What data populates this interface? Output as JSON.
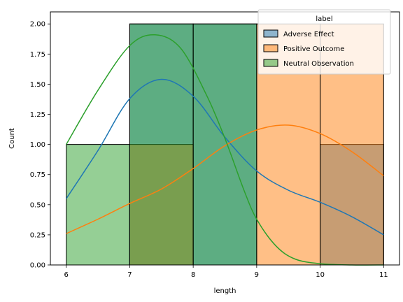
{
  "chart_data": {
    "type": "histogram",
    "title": "",
    "xlabel": "length",
    "ylabel": "Count",
    "xlim": [
      5.75,
      11.25
    ],
    "ylim": [
      0,
      2.1
    ],
    "xticks": [
      "6",
      "7",
      "8",
      "9",
      "10",
      "11"
    ],
    "yticks": [
      "0.00",
      "0.25",
      "0.50",
      "0.75",
      "1.00",
      "1.25",
      "1.50",
      "1.75",
      "2.00"
    ],
    "legend": {
      "title": "label",
      "position": "top-right"
    },
    "bin_edges": [
      6,
      7,
      8,
      9,
      10,
      11
    ],
    "series": [
      {
        "name": "Adverse Effect",
        "color": "#1f77b4",
        "counts": [
          0,
          2,
          2,
          0,
          1
        ],
        "kde": [
          [
            6.0,
            0.55
          ],
          [
            6.5,
            0.95
          ],
          [
            7.0,
            1.38
          ],
          [
            7.5,
            1.54
          ],
          [
            8.0,
            1.4
          ],
          [
            8.5,
            1.06
          ],
          [
            9.0,
            0.78
          ],
          [
            9.5,
            0.62
          ],
          [
            10.0,
            0.52
          ],
          [
            10.5,
            0.4
          ],
          [
            11.0,
            0.25
          ]
        ]
      },
      {
        "name": "Positive Outcome",
        "color": "#ff7f0e",
        "counts": [
          0,
          1,
          0,
          2,
          2
        ],
        "kde": [
          [
            6.0,
            0.26
          ],
          [
            6.5,
            0.38
          ],
          [
            7.0,
            0.51
          ],
          [
            7.5,
            0.63
          ],
          [
            8.0,
            0.8
          ],
          [
            8.5,
            0.99
          ],
          [
            9.0,
            1.12
          ],
          [
            9.5,
            1.16
          ],
          [
            10.0,
            1.09
          ],
          [
            10.5,
            0.94
          ],
          [
            11.0,
            0.74
          ]
        ]
      },
      {
        "name": "Neutral Observation",
        "color": "#2ca02c",
        "counts": [
          1,
          2,
          2,
          0,
          0
        ],
        "kde": [
          [
            6.0,
            1.0
          ],
          [
            6.5,
            1.45
          ],
          [
            7.0,
            1.82
          ],
          [
            7.4,
            1.91
          ],
          [
            7.8,
            1.8
          ],
          [
            8.2,
            1.42
          ],
          [
            8.5,
            1.05
          ],
          [
            8.8,
            0.62
          ],
          [
            9.0,
            0.38
          ],
          [
            9.3,
            0.16
          ],
          [
            9.6,
            0.05
          ],
          [
            10.0,
            0.01
          ],
          [
            10.5,
            0.0
          ],
          [
            11.0,
            0.0
          ]
        ]
      }
    ],
    "grid": false
  }
}
